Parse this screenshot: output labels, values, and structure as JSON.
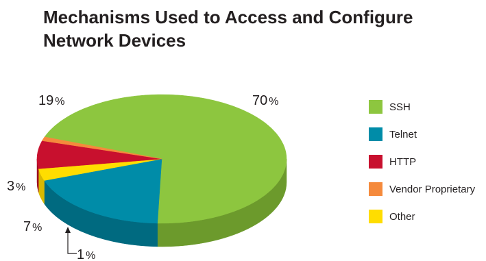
{
  "chart_data": {
    "type": "pie",
    "title": "Mechanisms Used to Access and Configure Network Devices",
    "legend_position": "right",
    "slices": [
      {
        "label": "SSH",
        "value": 70,
        "value_label": "70",
        "color": "#8dc63f",
        "side_color": "#6c9a2c"
      },
      {
        "label": "Telnet",
        "value": 19,
        "value_label": "19",
        "color": "#008ca8",
        "side_color": "#006a80"
      },
      {
        "label": "Other",
        "value": 3,
        "value_label": "3",
        "color": "#ffdd00",
        "side_color": "#d9b800"
      },
      {
        "label": "HTTP",
        "value": 7,
        "value_label": "7",
        "color": "#c8102e",
        "side_color": "#9c0c24"
      },
      {
        "label": "Vendor Proprietary",
        "value": 1,
        "value_label": "1",
        "color": "#f58a3c",
        "side_color": "#cc6a26"
      }
    ],
    "percent_sign": "%"
  },
  "legend": {
    "items": [
      {
        "label": "SSH",
        "color": "#8dc63f"
      },
      {
        "label": "Telnet",
        "color": "#008ca8"
      },
      {
        "label": "HTTP",
        "color": "#c8102e"
      },
      {
        "label": "Vendor Proprietary",
        "color": "#f58a3c"
      },
      {
        "label": "Other",
        "color": "#ffdd00"
      }
    ]
  }
}
